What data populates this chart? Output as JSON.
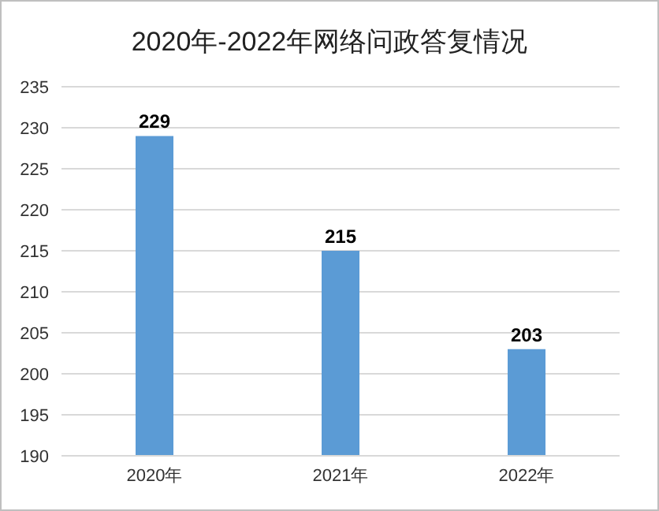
{
  "chart_data": {
    "type": "bar",
    "title": "2020年-2022年网络问政答复情况",
    "categories": [
      "2020年",
      "2021年",
      "2022年"
    ],
    "values": [
      229,
      215,
      203
    ],
    "color": "#5b9bd5",
    "ylim": [
      190,
      235
    ],
    "yticks": [
      190,
      195,
      200,
      205,
      210,
      215,
      220,
      225,
      230,
      235
    ],
    "grid": "y",
    "data_labels": true
  }
}
